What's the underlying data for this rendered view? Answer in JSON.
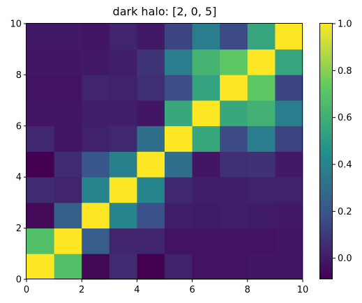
{
  "chart_data": {
    "type": "heatmap",
    "title": "dark halo: [2, 0, 5]",
    "xlabel": "",
    "ylabel": "",
    "xlim": [
      0,
      10
    ],
    "ylim": [
      0,
      10
    ],
    "x_ticks": [
      "0",
      "2",
      "4",
      "6",
      "8",
      "10"
    ],
    "y_ticks": [
      "0",
      "2",
      "4",
      "6",
      "8",
      "10"
    ],
    "colorbar": {
      "min": -0.09,
      "max": 1.0,
      "ticks": [
        "0.0",
        "0.2",
        "0.4",
        "0.6",
        "0.8",
        "1.0"
      ],
      "tick_values": [
        0.0,
        0.2,
        0.4,
        0.6,
        0.8,
        1.0
      ],
      "colormap": "viridis"
    },
    "grid": false,
    "row_order": "bottom-to-top",
    "matrix": [
      [
        1.0,
        0.68,
        -0.07,
        0.05,
        -0.09,
        0.02,
        -0.03,
        -0.03,
        -0.02,
        -0.02
      ],
      [
        0.68,
        1.0,
        0.23,
        0.03,
        0.03,
        -0.03,
        -0.03,
        -0.03,
        -0.03,
        -0.02
      ],
      [
        -0.06,
        0.24,
        1.0,
        0.4,
        0.18,
        0.01,
        0.0,
        0.01,
        0.0,
        -0.01
      ],
      [
        0.05,
        0.03,
        0.4,
        1.0,
        0.4,
        0.04,
        0.01,
        0.01,
        0.02,
        0.02
      ],
      [
        -0.09,
        0.05,
        0.2,
        0.38,
        1.0,
        0.31,
        -0.02,
        0.06,
        0.07,
        -0.01
      ],
      [
        0.04,
        -0.02,
        0.02,
        0.04,
        0.31,
        1.0,
        0.56,
        0.16,
        0.37,
        0.13
      ],
      [
        -0.02,
        -0.02,
        0.01,
        0.01,
        -0.02,
        0.56,
        1.0,
        0.56,
        0.61,
        0.37
      ],
      [
        -0.03,
        -0.03,
        0.03,
        0.02,
        0.06,
        0.17,
        0.54,
        1.0,
        0.72,
        0.14
      ],
      [
        -0.02,
        -0.02,
        -0.01,
        0.01,
        0.08,
        0.37,
        0.62,
        0.72,
        1.0,
        0.55
      ],
      [
        -0.01,
        -0.01,
        -0.02,
        0.03,
        -0.01,
        0.14,
        0.37,
        0.16,
        0.55,
        1.0
      ]
    ]
  }
}
